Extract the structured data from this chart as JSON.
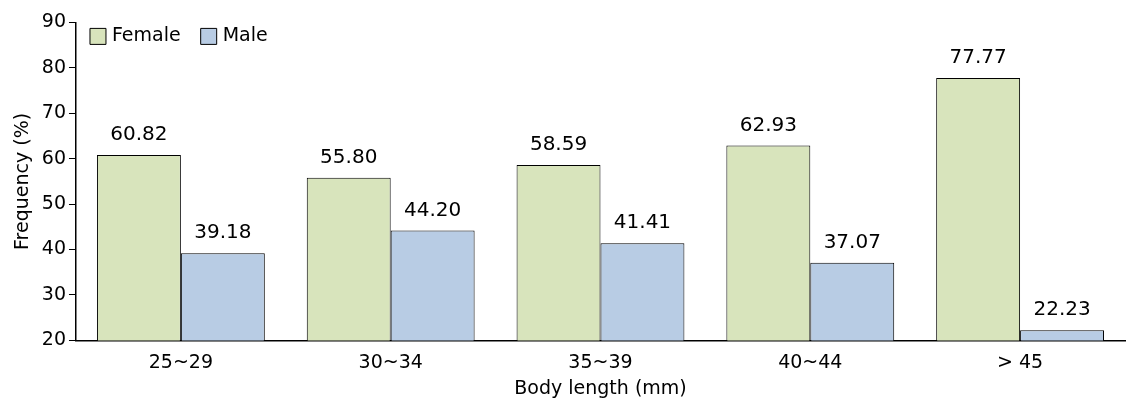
{
  "chart_data": {
    "type": "bar",
    "xlabel": "Body length (mm)",
    "ylabel": "Frequency (%)",
    "categories": [
      "25~29",
      "30~34",
      "35~39",
      "40~44",
      "> 45"
    ],
    "series": [
      {
        "name": "Female",
        "color": "#d8e4bc",
        "values": [
          60.82,
          55.8,
          58.59,
          62.93,
          77.77
        ],
        "value_labels": [
          "60.82",
          "55.80",
          "58.59",
          "62.93",
          "77.77"
        ]
      },
      {
        "name": "Male",
        "color": "#b8cce4",
        "values": [
          39.18,
          44.2,
          41.41,
          37.07,
          22.23
        ],
        "value_labels": [
          "39.18",
          "44.20",
          "41.41",
          "37.07",
          "22.23"
        ]
      }
    ],
    "ylim": [
      20,
      90
    ],
    "yticks": [
      20,
      30,
      40,
      50,
      60,
      70,
      80,
      90
    ],
    "grid": false,
    "legend": "top left"
  }
}
